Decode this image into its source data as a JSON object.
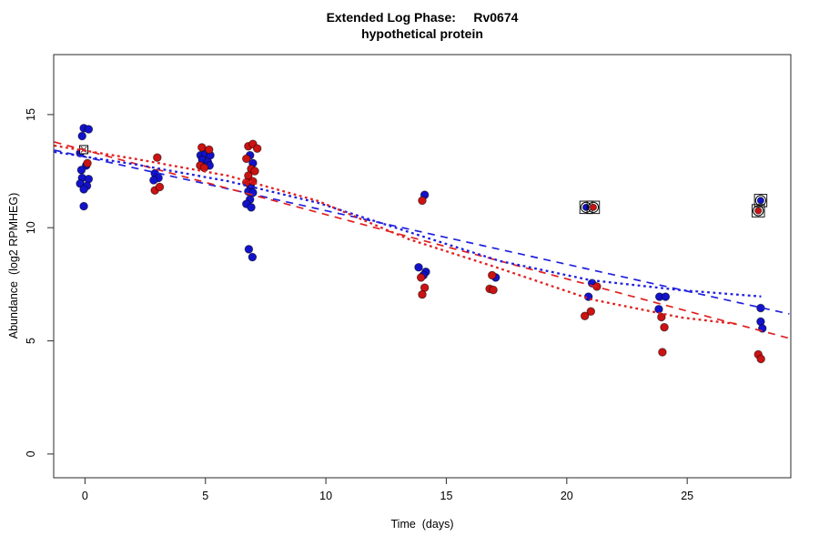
{
  "window": {
    "kind": "r-plot-figure"
  },
  "chart_data": {
    "type": "scatter",
    "title_line1": "Extended Log Phase:     Rv0674",
    "title_line2": "hypothetical protein",
    "xlabel": "Time  (days)",
    "ylabel": "Abundance  (log2 RPMHEG)",
    "xlim": [
      -1.3,
      29.3
    ],
    "ylim": [
      -1.05,
      17.65
    ],
    "xticks": [
      0,
      5,
      10,
      15,
      20,
      25
    ],
    "yticks": [
      0,
      5,
      10,
      15
    ],
    "grid": false,
    "legend": null,
    "colors": {
      "blue_point": "#1212cc",
      "red_point": "#cc1212",
      "blue_line": "#2020dd",
      "red_line": "#e02020",
      "marker_outline": "#000000",
      "box": "#3c3c3c"
    },
    "series": [
      {
        "name": "blue-replicates",
        "marker": "filled-circle",
        "color": "#1212cc",
        "points": [
          [
            -0.05,
            14.4
          ],
          [
            0.15,
            14.35
          ],
          [
            -0.12,
            14.05
          ],
          [
            -0.2,
            13.3
          ],
          [
            0.05,
            12.75
          ],
          [
            -0.15,
            12.55
          ],
          [
            -0.12,
            12.2
          ],
          [
            0.15,
            12.15
          ],
          [
            -0.2,
            11.95
          ],
          [
            0.08,
            11.85
          ],
          [
            -0.05,
            11.7
          ],
          [
            -0.05,
            10.95
          ],
          [
            2.9,
            12.4
          ],
          [
            3.05,
            12.2
          ],
          [
            2.85,
            12.1
          ],
          [
            4.8,
            13.2
          ],
          [
            5.0,
            13.25
          ],
          [
            5.2,
            13.2
          ],
          [
            4.87,
            13.0
          ],
          [
            5.1,
            12.9
          ],
          [
            5.17,
            12.75
          ],
          [
            6.85,
            13.2
          ],
          [
            6.97,
            12.85
          ],
          [
            6.88,
            11.8
          ],
          [
            6.78,
            11.6
          ],
          [
            6.97,
            11.55
          ],
          [
            6.85,
            11.25
          ],
          [
            6.7,
            11.05
          ],
          [
            6.9,
            10.9
          ],
          [
            6.8,
            9.05
          ],
          [
            6.95,
            8.7
          ],
          [
            14.1,
            11.45
          ],
          [
            13.85,
            8.25
          ],
          [
            14.15,
            8.05
          ],
          [
            14.05,
            7.9
          ],
          [
            17.05,
            7.8
          ],
          [
            21.05,
            7.55
          ],
          [
            20.9,
            6.95
          ],
          [
            23.85,
            6.95
          ],
          [
            24.1,
            6.95
          ],
          [
            23.82,
            6.4
          ],
          [
            28.05,
            6.45
          ],
          [
            28.05,
            5.85
          ],
          [
            28.12,
            5.55
          ]
        ]
      },
      {
        "name": "red-replicates",
        "marker": "filled-circle",
        "color": "#cc1212",
        "points": [
          [
            0.1,
            12.85
          ],
          [
            3.0,
            13.1
          ],
          [
            2.9,
            11.65
          ],
          [
            3.1,
            11.8
          ],
          [
            4.85,
            13.55
          ],
          [
            5.15,
            13.45
          ],
          [
            4.78,
            12.75
          ],
          [
            4.95,
            12.65
          ],
          [
            6.78,
            13.6
          ],
          [
            6.97,
            13.7
          ],
          [
            7.15,
            13.5
          ],
          [
            6.7,
            13.05
          ],
          [
            6.9,
            12.6
          ],
          [
            7.05,
            12.5
          ],
          [
            6.78,
            12.3
          ],
          [
            6.7,
            12.0
          ],
          [
            6.97,
            12.05
          ],
          [
            14.0,
            11.2
          ],
          [
            13.95,
            7.8
          ],
          [
            14.1,
            7.35
          ],
          [
            14.0,
            7.05
          ],
          [
            16.9,
            7.9
          ],
          [
            16.8,
            7.3
          ],
          [
            16.95,
            7.25
          ],
          [
            21.25,
            7.4
          ],
          [
            21.0,
            6.3
          ],
          [
            20.75,
            6.1
          ],
          [
            23.93,
            6.05
          ],
          [
            24.05,
            5.6
          ],
          [
            23.97,
            4.5
          ],
          [
            27.95,
            4.4
          ],
          [
            28.06,
            4.2
          ]
        ]
      },
      {
        "name": "blue-flagged-outliers",
        "marker": "circled-boxed-dot",
        "color": "#1212cc",
        "points": [
          [
            20.8,
            10.9
          ],
          [
            28.05,
            11.2
          ]
        ]
      },
      {
        "name": "red-flagged-outliers",
        "marker": "circled-boxed-dot",
        "color": "#cc1212",
        "points": [
          [
            21.1,
            10.9
          ],
          [
            27.95,
            10.75
          ]
        ]
      },
      {
        "name": "reference-open-square",
        "marker": "open-square-cross",
        "color": "#000000",
        "points": [
          [
            -0.05,
            13.45
          ]
        ]
      }
    ],
    "trends": [
      {
        "name": "blue-linear-fit",
        "style": "dashed",
        "color": "#2020dd",
        "points": [
          [
            -1.28,
            13.43
          ],
          [
            29.24,
            6.19
          ]
        ]
      },
      {
        "name": "red-linear-fit",
        "style": "dashed",
        "color": "#e02020",
        "points": [
          [
            -1.28,
            13.79
          ],
          [
            29.24,
            5.11
          ]
        ]
      },
      {
        "name": "blue-smooth-fit",
        "style": "dotted",
        "color": "#2020dd",
        "points": [
          [
            -1.28,
            13.35
          ],
          [
            2.15,
            12.79
          ],
          [
            5.92,
            12.06
          ],
          [
            9.68,
            11.1
          ],
          [
            13.45,
            9.81
          ],
          [
            17.22,
            8.53
          ],
          [
            20.99,
            7.68
          ],
          [
            24.75,
            7.24
          ],
          [
            28.07,
            6.96
          ]
        ]
      },
      {
        "name": "red-smooth-fit",
        "style": "dotted",
        "color": "#e02020",
        "points": [
          [
            -1.28,
            13.63
          ],
          [
            2.15,
            13.03
          ],
          [
            5.92,
            12.3
          ],
          [
            9.68,
            11.18
          ],
          [
            13.45,
            9.49
          ],
          [
            17.22,
            8.2
          ],
          [
            20.99,
            6.84
          ],
          [
            24.75,
            6.03
          ],
          [
            27.01,
            5.75
          ]
        ]
      }
    ]
  }
}
